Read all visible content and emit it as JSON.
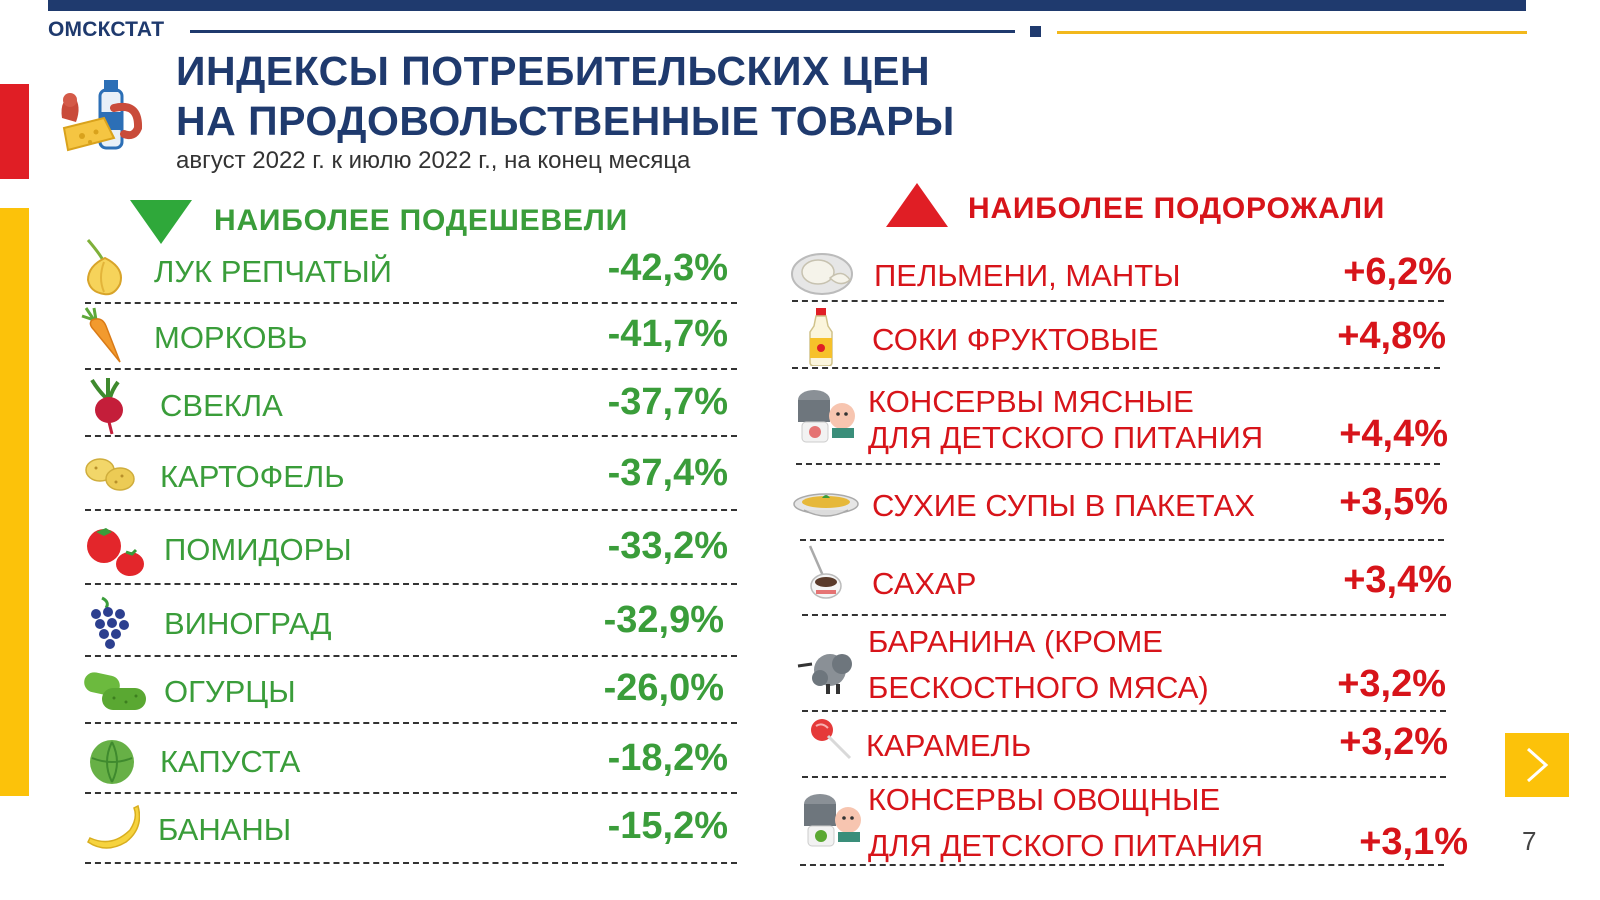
{
  "header": {
    "brand": "ОМСКСТАТ",
    "title_line1": "ИНДЕКСЫ ПОТРЕБИТЕЛЬСКИХ ЦЕН",
    "title_line2": "НА ПРОДОВОЛЬСТВЕННЫЕ ТОВАРЫ",
    "subtitle": "август 2022 г. к июлю 2022 г., на конец месяца"
  },
  "colors": {
    "navy": "#1f3a6e",
    "green": "#3a9d3a",
    "red": "#d7141a",
    "yellow": "#fcc20a"
  },
  "cheaper": {
    "heading": "НАИБОЛЕЕ  ПОДЕШЕВЕЛИ",
    "items": [
      {
        "label": "ЛУК РЕПЧАТЫЙ",
        "value": "-42,3%",
        "icon": "onion-icon"
      },
      {
        "label": "МОРКОВЬ",
        "value": "-41,7%",
        "icon": "carrot-icon"
      },
      {
        "label": "СВЕКЛА",
        "value": "-37,7%",
        "icon": "beet-icon"
      },
      {
        "label": "КАРТОФЕЛЬ",
        "value": "-37,4%",
        "icon": "potato-icon"
      },
      {
        "label": "ПОМИДОРЫ",
        "value": "-33,2%",
        "icon": "tomato-icon"
      },
      {
        "label": "ВИНОГРАД",
        "value": "-32,9%",
        "icon": "grapes-icon"
      },
      {
        "label": "ОГУРЦЫ",
        "value": "-26,0%",
        "icon": "cucumber-icon"
      },
      {
        "label": "КАПУСТА",
        "value": "-18,2%",
        "icon": "cabbage-icon"
      },
      {
        "label": "БАНАНЫ",
        "value": "-15,2%",
        "icon": "banana-icon"
      }
    ]
  },
  "pricier": {
    "heading": "НАИБОЛЕЕ  ПОДОРОЖАЛИ",
    "items": [
      {
        "label": "ПЕЛЬМЕНИ, МАНТЫ",
        "value": "+6,2%",
        "icon": "dumplings-icon"
      },
      {
        "label": "СОКИ ФРУКТОВЫЕ",
        "value": "+4,8%",
        "icon": "juice-icon"
      },
      {
        "label": "КОНСЕРВЫ МЯСНЫЕ",
        "label2": "ДЛЯ ДЕТСКОГО ПИТАНИЯ",
        "value": "+4,4%",
        "icon": "baby-meat-can-icon"
      },
      {
        "label": "СУХИЕ СУПЫ В ПАКЕТАХ",
        "value": "+3,5%",
        "icon": "soup-icon"
      },
      {
        "label": "САХАР",
        "value": "+3,4%",
        "icon": "sugar-icon"
      },
      {
        "label": "БАРАНИНА (КРОМЕ",
        "label2": "БЕСКОСТНОГО МЯСА)",
        "value": "+3,2%",
        "icon": "lamb-icon"
      },
      {
        "label": "КАРАМЕЛЬ",
        "value": "+3,2%",
        "icon": "candy-icon"
      },
      {
        "label": "КОНСЕРВЫ ОВОЩНЫЕ",
        "label2": "ДЛЯ ДЕТСКОГО ПИТАНИЯ",
        "value": "+3,1%",
        "icon": "baby-veg-can-icon"
      }
    ]
  },
  "nav": {
    "next_icon": "chevron-right-icon",
    "page_number": "7"
  }
}
